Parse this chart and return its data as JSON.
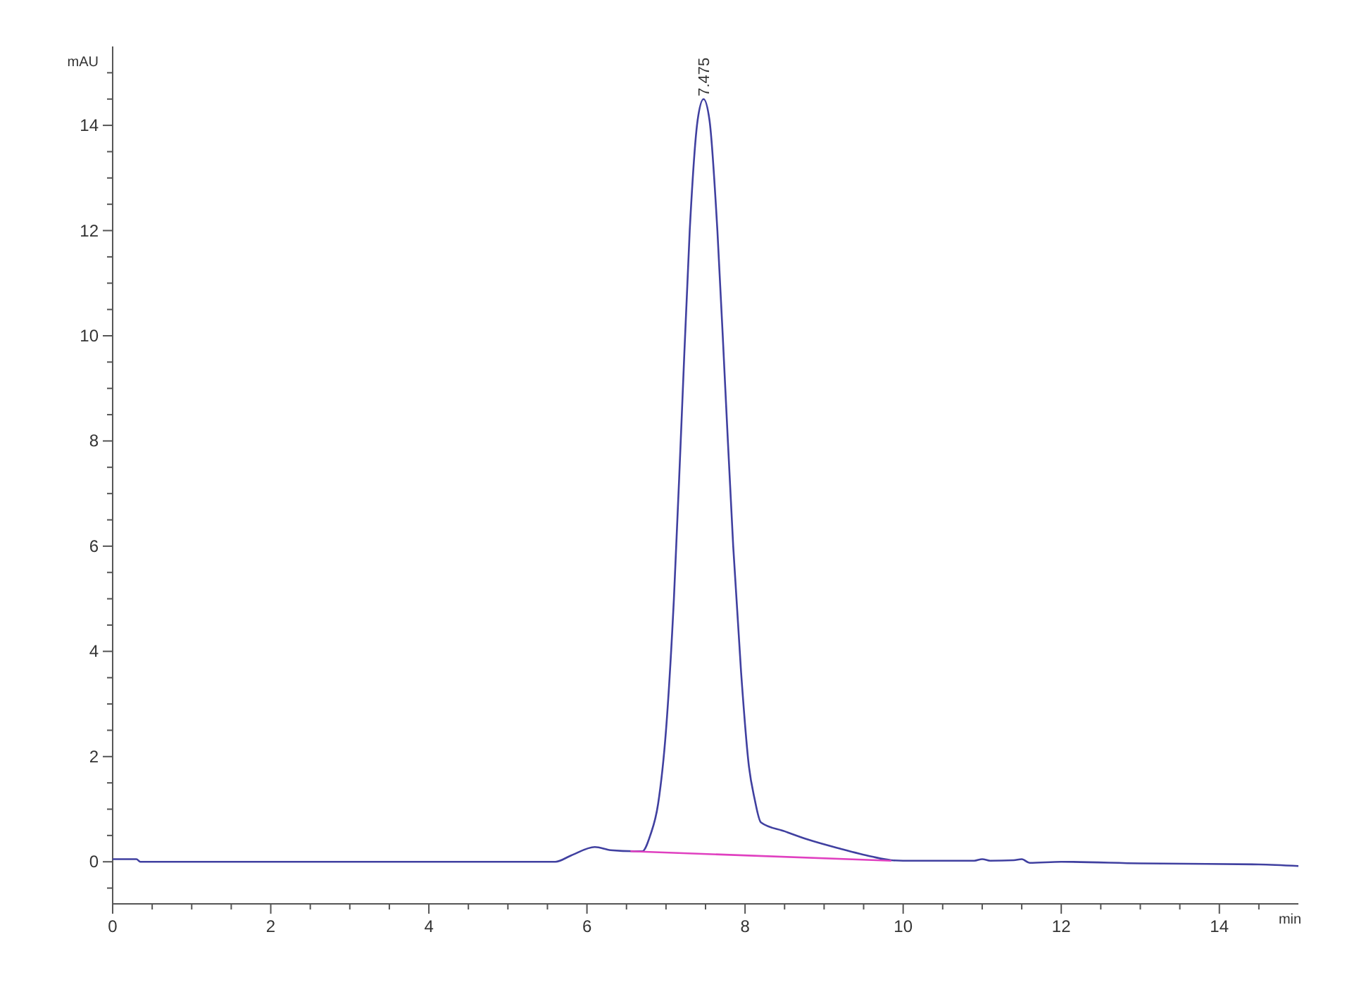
{
  "chart_data": {
    "type": "line",
    "xlabel": "min",
    "ylabel": "mAU",
    "xlim": [
      0,
      15
    ],
    "ylim": [
      -0.8,
      15.5
    ],
    "xticks": [
      0,
      {
        "value": 0.5,
        "label": null
      },
      2,
      {
        "value": 1,
        "label": null
      },
      {
        "value": 1.5,
        "label": null
      },
      {
        "value": 2.5,
        "label": null
      },
      {
        "value": 3,
        "label": null
      },
      {
        "value": 3.5,
        "label": null
      },
      4,
      {
        "value": 4.5,
        "label": null
      },
      {
        "value": 5,
        "label": null
      },
      {
        "value": 5.5,
        "label": null
      },
      6,
      {
        "value": 6.5,
        "label": null
      },
      {
        "value": 7,
        "label": null
      },
      {
        "value": 7.5,
        "label": null
      },
      8,
      {
        "value": 8.5,
        "label": null
      },
      {
        "value": 9,
        "label": null
      },
      {
        "value": 9.5,
        "label": null
      },
      10,
      {
        "value": 10.5,
        "label": null
      },
      {
        "value": 11,
        "label": null
      },
      {
        "value": 11.5,
        "label": null
      },
      12,
      {
        "value": 12.5,
        "label": null
      },
      {
        "value": 13,
        "label": null
      },
      {
        "value": 13.5,
        "label": null
      },
      14,
      {
        "value": 14.5,
        "label": null
      }
    ],
    "yticks": [
      {
        "value": -0.5,
        "label": null
      },
      0,
      {
        "value": 0.5,
        "label": null
      },
      {
        "value": 1,
        "label": null
      },
      {
        "value": 1.5,
        "label": null
      },
      2,
      {
        "value": 2.5,
        "label": null
      },
      {
        "value": 3,
        "label": null
      },
      {
        "value": 3.5,
        "label": null
      },
      4,
      {
        "value": 4.5,
        "label": null
      },
      {
        "value": 5,
        "label": null
      },
      {
        "value": 5.5,
        "label": null
      },
      6,
      {
        "value": 6.5,
        "label": null
      },
      {
        "value": 7,
        "label": null
      },
      {
        "value": 7.5,
        "label": null
      },
      8,
      {
        "value": 8.5,
        "label": null
      },
      {
        "value": 9,
        "label": null
      },
      {
        "value": 9.5,
        "label": null
      },
      10,
      {
        "value": 10.5,
        "label": null
      },
      {
        "value": 11,
        "label": null
      },
      {
        "value": 11.5,
        "label": null
      },
      12,
      {
        "value": 12.5,
        "label": null
      },
      {
        "value": 13,
        "label": null
      },
      {
        "value": 13.5,
        "label": null
      },
      14,
      {
        "value": 14.5,
        "label": null
      },
      {
        "value": 15,
        "label": null
      }
    ],
    "grid": false,
    "series": [
      {
        "color": "#4040a0",
        "x": [
          0,
          0.3,
          0.35,
          1,
          2,
          3,
          4,
          5,
          5.6,
          5.8,
          6.1,
          6.3,
          6.6,
          6.7,
          6.8,
          6.9,
          7.0,
          7.1,
          7.2,
          7.3,
          7.4,
          7.475,
          7.55,
          7.65,
          7.75,
          7.85,
          7.95,
          8.05,
          8.12,
          8.2,
          8.5,
          8.8,
          9.2,
          9.6,
          9.85,
          10,
          10.9,
          11,
          11.1,
          11.4,
          11.5,
          11.6,
          12,
          13,
          14.5,
          15
        ],
        "values": [
          0.05,
          0.05,
          0,
          0,
          0,
          0,
          0,
          0,
          0,
          0.12,
          0.28,
          0.22,
          0.2,
          0.2,
          0.5,
          1.1,
          2.5,
          5,
          8.5,
          12,
          14.1,
          14.5,
          14.1,
          12,
          9,
          6,
          3.6,
          1.8,
          1.2,
          0.75,
          0.58,
          0.42,
          0.25,
          0.1,
          0.03,
          0.02,
          0.02,
          0.05,
          0.02,
          0.03,
          0.05,
          -0.02,
          0,
          -0.03,
          -0.05,
          -0.08
        ]
      },
      {
        "color": "#e040c0",
        "x": [
          6.55,
          9.85
        ],
        "values": [
          0.2,
          0.02
        ]
      }
    ],
    "annotations": [
      {
        "text": "7.475",
        "x": 7.475,
        "y": 14.5
      }
    ]
  }
}
